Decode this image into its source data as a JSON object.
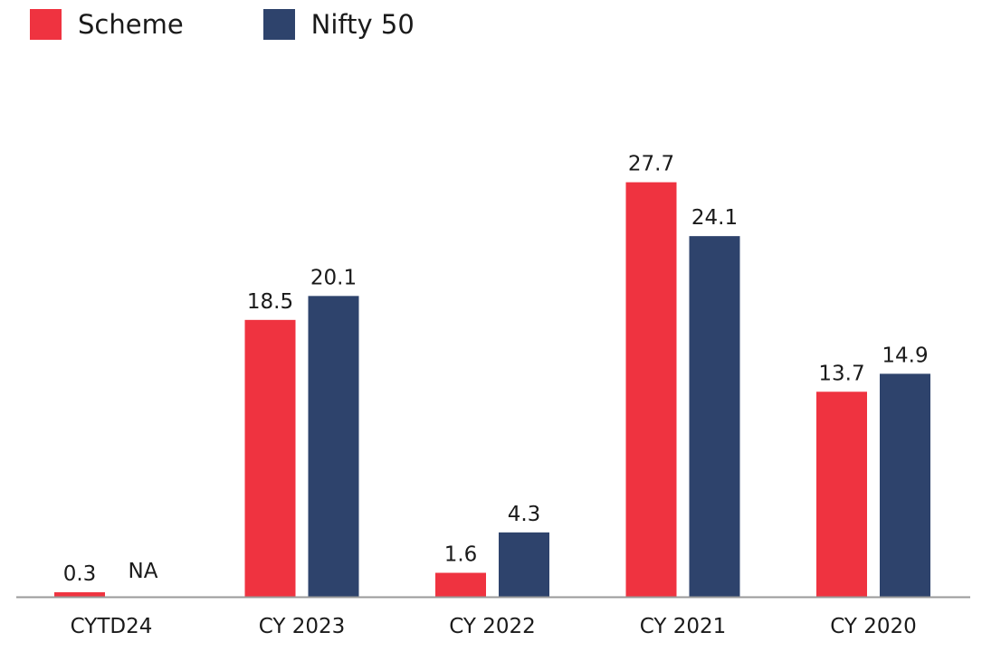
{
  "colors": {
    "scheme": "#ef3340",
    "nifty": "#2e436c",
    "axis": "#999999"
  },
  "legend": [
    {
      "name": "Scheme",
      "color": "#ef3340"
    },
    {
      "name": "Nifty 50",
      "color": "#2e436c"
    }
  ],
  "chart_data": {
    "type": "bar",
    "categories": [
      "CYTD24",
      "CY 2023",
      "CY 2022",
      "CY 2021",
      "CY 2020"
    ],
    "series": [
      {
        "name": "Scheme",
        "values": [
          0.3,
          18.5,
          1.6,
          27.7,
          13.7
        ],
        "labels": [
          "0.3",
          "18.5",
          "1.6",
          "27.7",
          "13.7"
        ]
      },
      {
        "name": "Nifty 50",
        "values": [
          null,
          20.1,
          4.3,
          24.1,
          14.9
        ],
        "labels": [
          "NA",
          "20.1",
          "4.3",
          "24.1",
          "14.9"
        ]
      }
    ],
    "ylim": [
      0,
      30
    ],
    "grid": false,
    "legend_position": "top-left",
    "xlabel": "",
    "ylabel": ""
  }
}
